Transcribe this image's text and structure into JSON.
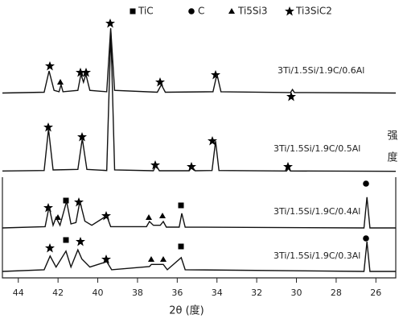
{
  "chart_data": {
    "type": "line",
    "x_label": "2θ (度)",
    "y_label": "强度",
    "phase_legend": [
      "Ti3SiC2",
      "C",
      "Ti5Si3",
      "TiC"
    ],
    "xlim": [
      44.8,
      25
    ],
    "ylim": [
      0,
      100
    ],
    "xticks": [
      44,
      42,
      40,
      38,
      36,
      34,
      32,
      30,
      28,
      26
    ],
    "series": [
      {
        "name": "3Ti/1.5Si/1.9C/0.6Al",
        "color": "#111",
        "x": [
          44.8,
          42.7,
          42.45,
          42.2,
          41.95,
          41.85,
          41.75,
          41.0,
          40.85,
          40.72,
          40.6,
          40.4,
          39.55,
          39.35,
          39.15,
          37.0,
          36.8,
          36.6,
          34.2,
          34.0,
          33.8,
          30.3,
          30.2,
          30.1,
          25
        ],
        "values": [
          68.5,
          68.8,
          76.7,
          69.5,
          69.0,
          71.6,
          69.0,
          69.5,
          75.5,
          72.5,
          75.5,
          69.5,
          69.0,
          92.5,
          69.5,
          68.8,
          71.6,
          68.8,
          69.0,
          75.5,
          69.0,
          68.7,
          69.8,
          68.7,
          68.5
        ]
      },
      {
        "name": "3Ti/1.5Si/1.9C/0.5Al",
        "color": "#111",
        "x": [
          44.8,
          42.7,
          42.48,
          42.25,
          41.0,
          40.78,
          40.55,
          39.55,
          39.34,
          39.15,
          37.2,
          37.07,
          36.9,
          35.4,
          35.25,
          35.1,
          34.25,
          34.07,
          33.9,
          30.5,
          30.4,
          30.3,
          25
        ],
        "values": [
          39.6,
          39.8,
          55.2,
          40.0,
          40.2,
          51.6,
          40.2,
          39.8,
          91.3,
          40.0,
          39.7,
          41.8,
          39.7,
          39.7,
          41.2,
          39.7,
          39.8,
          50.7,
          39.8,
          39.6,
          40.5,
          39.6,
          39.5
        ]
      },
      {
        "name": "3Ti/1.5Si/1.9C/0.4Al",
        "color": "#111",
        "x": [
          44.8,
          42.65,
          42.45,
          42.25,
          42.1,
          41.9,
          41.57,
          41.35,
          41.1,
          40.9,
          40.65,
          40.3,
          39.55,
          39.35,
          37.55,
          37.4,
          37.2,
          36.85,
          36.7,
          36.55,
          35.9,
          35.77,
          35.6,
          26.6,
          26.45,
          26.3,
          25
        ],
        "values": [
          18.5,
          19.0,
          26.3,
          19.5,
          22.4,
          19.5,
          28.4,
          20.0,
          20.5,
          28.4,
          21.0,
          19.5,
          23.0,
          19.0,
          19.0,
          20.9,
          19.5,
          19.5,
          20.9,
          18.8,
          18.8,
          23.9,
          18.8,
          18.5,
          29.9,
          18.5,
          18.5
        ]
      },
      {
        "name": "3Ti/1.5Si/1.9C/0.3Al",
        "color": "#111",
        "x": [
          44.8,
          42.7,
          42.4,
          42.1,
          41.6,
          41.35,
          41.0,
          40.8,
          40.4,
          39.55,
          39.3,
          37.4,
          37.3,
          36.7,
          36.5,
          35.8,
          35.6,
          26.6,
          26.45,
          26.3,
          25
        ],
        "values": [
          2.4,
          3.0,
          8.1,
          4.0,
          9.9,
          4.0,
          10.4,
          7.0,
          4.0,
          6.0,
          3.0,
          4.2,
          5.0,
          5.0,
          3.0,
          7.5,
          3.0,
          2.4,
          13.4,
          2.4,
          2.4
        ]
      }
    ]
  }
}
